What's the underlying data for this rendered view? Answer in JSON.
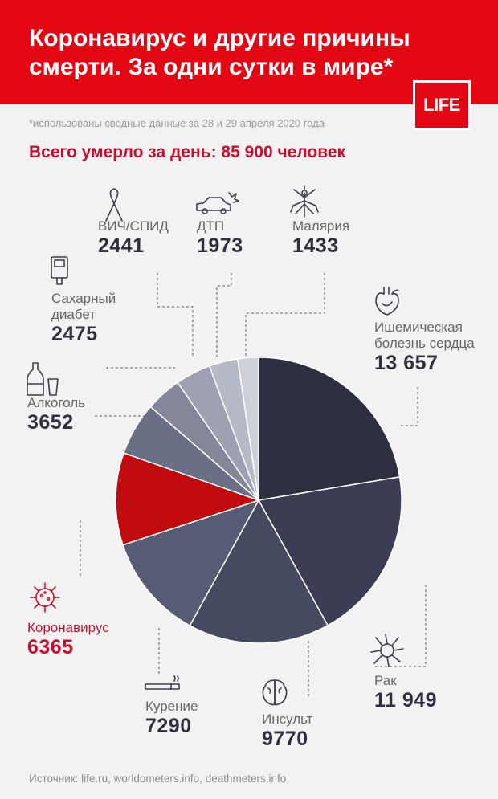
{
  "header": {
    "title": "Коронавирус и другие причины смерти. За одни сутки в мире*",
    "logo": "LIFE"
  },
  "footnote": "*использованы сводные данные за 28 и 29 апреля 2020 года",
  "total": "Всего умерло за день: 85 900 человек",
  "source": "Источник: life.ru, worldometers.info, deathmeters.info",
  "colors": {
    "red": "#e30613",
    "dark_red": "#c8102e"
  },
  "chart_data": {
    "type": "pie",
    "title": "Коронавирус и другие причины смерти. За одни сутки в мире*",
    "slices": [
      {
        "label": "Ишемическая болезнь сердца",
        "label_lines": [
          "Ишемическая",
          "болезнь сердца"
        ],
        "display": "13 657",
        "value": 13657,
        "color": "#2e3042",
        "icon": "heart-icon"
      },
      {
        "label": "Рак",
        "label_lines": [
          "Рак"
        ],
        "display": "11 949",
        "value": 11949,
        "color": "#3a3d53",
        "icon": "cancer-cell-icon"
      },
      {
        "label": "Инсульт",
        "label_lines": [
          "Инсульт"
        ],
        "display": "9770",
        "value": 9770,
        "color": "#464a61",
        "icon": "brain-icon"
      },
      {
        "label": "Курение",
        "label_lines": [
          "Курение"
        ],
        "display": "7290",
        "value": 7290,
        "color": "#575b73",
        "icon": "cigarette-icon"
      },
      {
        "label": "Коронавирус",
        "label_lines": [
          "Коронавирус"
        ],
        "display": "6365",
        "value": 6365,
        "color": "#c10b0e",
        "icon": "coronavirus-icon"
      },
      {
        "label": "Алкоголь",
        "label_lines": [
          "Алкоголь"
        ],
        "display": "3652",
        "value": 3652,
        "color": "#6b6f86",
        "icon": "bottle-icon"
      },
      {
        "label": "Сахарный диабет",
        "label_lines": [
          "Сахарный",
          "диабет"
        ],
        "display": "2475",
        "value": 2475,
        "color": "#838799",
        "icon": "glucometer-icon"
      },
      {
        "label": "ВИЧ/СПИД",
        "label_lines": [
          "ВИЧ/СПИД"
        ],
        "display": "2441",
        "value": 2441,
        "color": "#9da1b1",
        "icon": "ribbon-icon"
      },
      {
        "label": "ДТП",
        "label_lines": [
          "ДТП"
        ],
        "display": "1973",
        "value": 1973,
        "color": "#b6b9c6",
        "icon": "car-crash-icon"
      },
      {
        "label": "Малярия",
        "label_lines": [
          "Малярия"
        ],
        "display": "1433",
        "value": 1433,
        "color": "#cdd0d9",
        "icon": "mosquito-icon"
      }
    ]
  }
}
